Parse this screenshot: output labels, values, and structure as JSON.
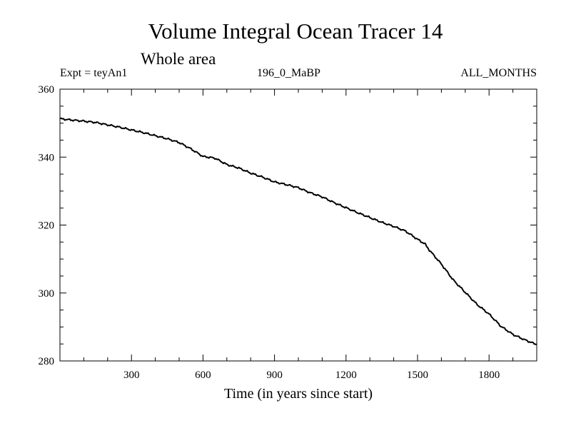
{
  "chart_data": {
    "type": "line",
    "title": "Volume Integral Ocean Tracer 14",
    "subtitle": "Whole area",
    "experiment": "Expt = teyAn1",
    "period": "196_0_MaBP",
    "months": "ALL_MONTHS",
    "xlabel": "Time (in years since start)",
    "ylabel": "",
    "xlim": [
      0,
      2000
    ],
    "ylim": [
      280,
      360
    ],
    "xticks": [
      300,
      600,
      900,
      1200,
      1500,
      1800
    ],
    "xtick_labels": [
      "300",
      "600",
      "900",
      "1200",
      "1500",
      "1800"
    ],
    "yticks": [
      280,
      300,
      320,
      340,
      360
    ],
    "ytick_labels": [
      "280",
      "300",
      "320",
      "340",
      "360"
    ],
    "line_color": "#000000",
    "series": [
      {
        "name": "Volume Integral Ocean Tracer 14",
        "x": [
          0,
          50,
          100,
          150,
          200,
          250,
          300,
          350,
          400,
          450,
          500,
          550,
          600,
          650,
          700,
          750,
          800,
          850,
          900,
          950,
          1000,
          1050,
          1100,
          1150,
          1200,
          1250,
          1300,
          1350,
          1400,
          1450,
          1500,
          1530,
          1550,
          1600,
          1650,
          1700,
          1750,
          1800,
          1850,
          1900,
          1950,
          2000
        ],
        "values": [
          351.3,
          350.9,
          350.6,
          350.2,
          349.5,
          348.8,
          348.0,
          347.2,
          346.3,
          345.4,
          344.3,
          342.4,
          340.2,
          339.7,
          337.8,
          336.8,
          335.3,
          334.1,
          332.7,
          331.9,
          331.0,
          329.5,
          328.3,
          326.6,
          325.1,
          323.6,
          322.2,
          320.8,
          319.6,
          318.2,
          315.8,
          314.5,
          312.6,
          308.5,
          303.8,
          300.2,
          296.6,
          293.8,
          290.2,
          287.8,
          286.2,
          284.8
        ]
      }
    ]
  }
}
